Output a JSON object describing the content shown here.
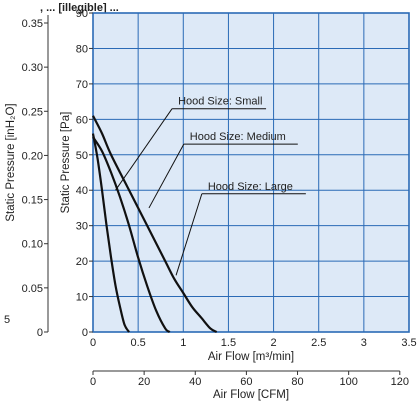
{
  "title_fragment": ", ... [illegible] ...",
  "corner_mark": "5",
  "chart_data": {
    "type": "line",
    "axes": {
      "x_primary": {
        "label": "Air Flow [m³/min]",
        "range": [
          0,
          3.5
        ],
        "ticks": [
          0,
          0.5,
          1,
          1.5,
          2,
          2.5,
          3,
          3.5
        ],
        "tick_labels": [
          "0",
          "0.5",
          "1",
          "1.5",
          "2",
          "2.5",
          "3",
          "3.5"
        ]
      },
      "x_secondary": {
        "label": "Air Flow [CFM]",
        "ticks": [
          0,
          20,
          40,
          60,
          80,
          100,
          120
        ],
        "tick_labels": [
          "0",
          "20",
          "40",
          "60",
          "80",
          "100",
          "120"
        ],
        "m3min_per_unit": 0.0283168
      },
      "y_primary": {
        "label": "Static Pressure [Pa]",
        "range": [
          0,
          90
        ],
        "ticks": [
          0,
          10,
          20,
          30,
          40,
          50,
          60,
          70,
          80,
          90
        ],
        "tick_labels": [
          "0",
          "10",
          "20",
          "30",
          "40",
          "50",
          "60",
          "70",
          "80",
          "90"
        ]
      },
      "y_secondary": {
        "label": "Static Pressure [inH₂O]",
        "ticks": [
          0,
          0.05,
          0.1,
          0.15,
          0.2,
          0.25,
          0.3,
          0.35
        ],
        "tick_labels": [
          "0",
          "0.05",
          "0.10",
          "0.15",
          "0.20",
          "0.25",
          "0.30",
          "0.35"
        ],
        "pa_per_unit": 249.089
      }
    },
    "grid": true,
    "plot_background": "#dde9f7",
    "grid_color": "#2a6ab6",
    "line_color": "#111111",
    "series": [
      {
        "name": "Hood Size: Small",
        "x": [
          0,
          0.05,
          0.1,
          0.15,
          0.2,
          0.25,
          0.3,
          0.35,
          0.4
        ],
        "y": [
          56,
          49,
          40,
          30,
          21,
          13,
          7,
          2,
          0
        ]
      },
      {
        "name": "Hood Size: Medium",
        "x": [
          0,
          0.1,
          0.2,
          0.3,
          0.4,
          0.5,
          0.6,
          0.7,
          0.8,
          0.85
        ],
        "y": [
          55,
          51,
          45,
          38,
          30,
          21,
          13,
          6,
          1,
          0
        ]
      },
      {
        "name": "Hood Size: Large",
        "x": [
          0,
          0.1,
          0.2,
          0.4,
          0.6,
          0.8,
          0.9,
          1.0,
          1.1,
          1.2,
          1.3,
          1.37
        ],
        "y": [
          61,
          56,
          50,
          40,
          30,
          20,
          15,
          11,
          7,
          4,
          1,
          0
        ]
      }
    ],
    "annotations": [
      {
        "text": "Hood Size: Small",
        "series": "Hood Size: Small",
        "at_x": 0.25,
        "at_y": 40,
        "label_x": 0.92,
        "label_y": 63
      },
      {
        "text": "Hood Size: Medium",
        "series": "Hood Size: Medium",
        "at_x": 0.62,
        "at_y": 35,
        "label_x": 1.05,
        "label_y": 53
      },
      {
        "text": "Hood Size: Large",
        "series": "Hood Size: Large",
        "at_x": 0.92,
        "at_y": 16,
        "label_x": 1.25,
        "label_y": 39
      }
    ]
  }
}
